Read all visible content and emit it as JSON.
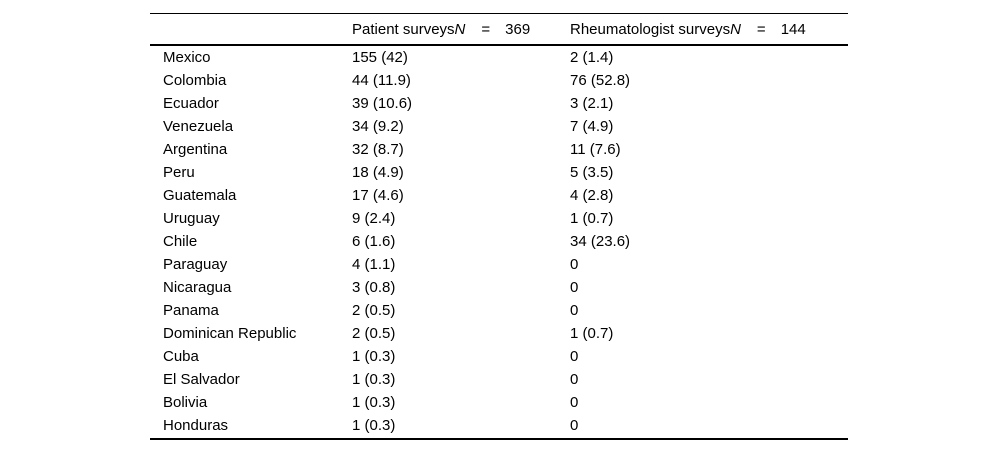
{
  "page": {
    "background": "#ffffff",
    "text_color": "#000000",
    "rule_color": "#000000"
  },
  "table": {
    "header": {
      "country_label": "",
      "patient": {
        "label": "Patient surveys",
        "n_symbol": "N",
        "equals": "=",
        "value": "369"
      },
      "rheumatologist": {
        "label": "Rheumatologist surveys",
        "n_symbol": "N",
        "equals": "=",
        "value": "144"
      }
    },
    "rows": [
      {
        "country": "Mexico",
        "patient_n_pct": "155 (42)",
        "rheumatologist_n_pct": "2 (1.4)"
      },
      {
        "country": "Colombia",
        "patient_n_pct": "44 (11.9)",
        "rheumatologist_n_pct": "76 (52.8)"
      },
      {
        "country": "Ecuador",
        "patient_n_pct": "39 (10.6)",
        "rheumatologist_n_pct": "3 (2.1)"
      },
      {
        "country": "Venezuela",
        "patient_n_pct": "34 (9.2)",
        "rheumatologist_n_pct": "7 (4.9)"
      },
      {
        "country": "Argentina",
        "patient_n_pct": "32 (8.7)",
        "rheumatologist_n_pct": "11 (7.6)"
      },
      {
        "country": "Peru",
        "patient_n_pct": "18 (4.9)",
        "rheumatologist_n_pct": "5 (3.5)"
      },
      {
        "country": "Guatemala",
        "patient_n_pct": "17 (4.6)",
        "rheumatologist_n_pct": "4 (2.8)"
      },
      {
        "country": "Uruguay",
        "patient_n_pct": "9 (2.4)",
        "rheumatologist_n_pct": "1 (0.7)"
      },
      {
        "country": "Chile",
        "patient_n_pct": "6 (1.6)",
        "rheumatologist_n_pct": "34 (23.6)"
      },
      {
        "country": "Paraguay",
        "patient_n_pct": "4 (1.1)",
        "rheumatologist_n_pct": "0"
      },
      {
        "country": "Nicaragua",
        "patient_n_pct": "3 (0.8)",
        "rheumatologist_n_pct": "0"
      },
      {
        "country": "Panama",
        "patient_n_pct": "2 (0.5)",
        "rheumatologist_n_pct": "0"
      },
      {
        "country": "Dominican Republic",
        "patient_n_pct": "2 (0.5)",
        "rheumatologist_n_pct": "1 (0.7)"
      },
      {
        "country": "Cuba",
        "patient_n_pct": "1 (0.3)",
        "rheumatologist_n_pct": "0"
      },
      {
        "country": "El Salvador",
        "patient_n_pct": "1 (0.3)",
        "rheumatologist_n_pct": "0"
      },
      {
        "country": "Bolivia",
        "patient_n_pct": "1 (0.3)",
        "rheumatologist_n_pct": "0"
      },
      {
        "country": "Honduras",
        "patient_n_pct": "1 (0.3)",
        "rheumatologist_n_pct": "0"
      }
    ]
  }
}
